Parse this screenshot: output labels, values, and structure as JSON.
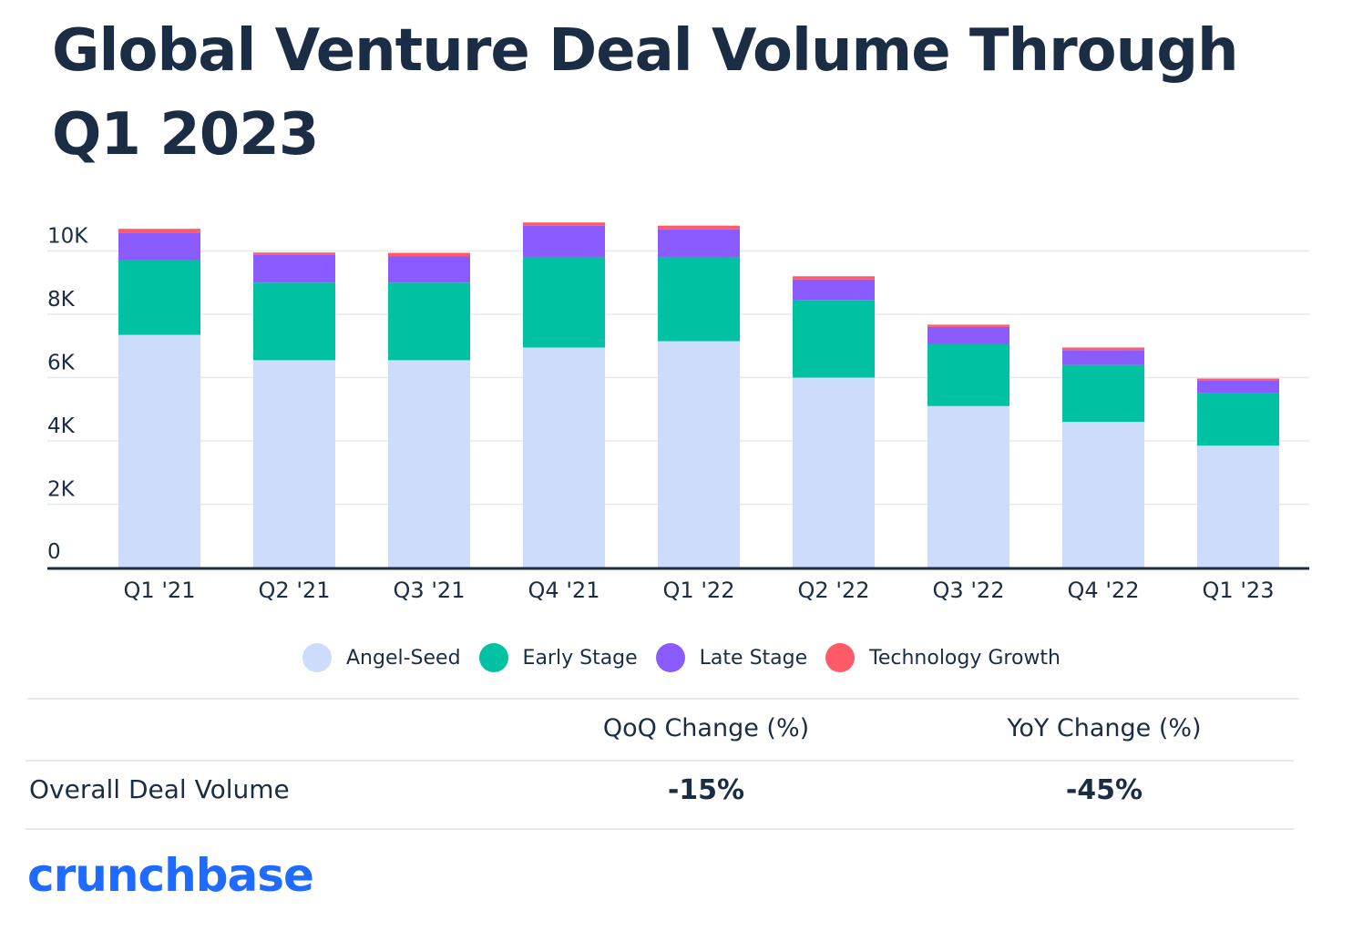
{
  "title": "Global Venture Deal Volume Through Q1 2023",
  "chart_data": {
    "type": "bar",
    "stacked": true,
    "categories": [
      "Q1 '21",
      "Q2 '21",
      "Q3 '21",
      "Q4 '21",
      "Q1 '22",
      "Q2 '22",
      "Q3 '22",
      "Q4 '22",
      "Q1 '23"
    ],
    "series": [
      {
        "name": "Angel-Seed",
        "color": "#cddcfb",
        "values": [
          7350,
          6550,
          6550,
          6950,
          7150,
          6000,
          5100,
          4600,
          3850
        ]
      },
      {
        "name": "Early Stage",
        "color": "#00c2a2",
        "values": [
          2350,
          2450,
          2450,
          2850,
          2650,
          2450,
          1950,
          1800,
          1650
        ]
      },
      {
        "name": "Late Stage",
        "color": "#8a5cff",
        "values": [
          880,
          880,
          840,
          1000,
          880,
          650,
          550,
          470,
          420
        ]
      },
      {
        "name": "Technology Growth",
        "color": "#ff5a67",
        "values": [
          120,
          70,
          100,
          100,
          120,
          100,
          70,
          80,
          50
        ]
      }
    ],
    "yticks": [
      "0",
      "2K",
      "4K",
      "6K",
      "8K",
      "10K"
    ],
    "ylim": [
      0,
      10800
    ],
    "grid": true,
    "legend_position": "bottom"
  },
  "table": {
    "headers": [
      "QoQ Change (%)",
      "YoY Change (%)"
    ],
    "row_label": "Overall Deal Volume",
    "values": [
      "-15%",
      "-45%"
    ]
  },
  "logo": "crunchbase"
}
